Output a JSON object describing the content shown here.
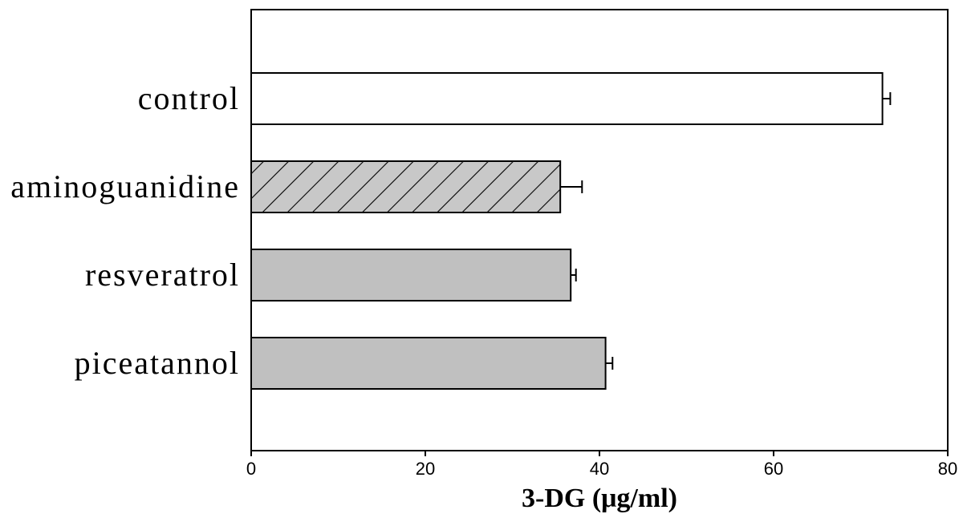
{
  "chart_data": {
    "type": "bar",
    "orientation": "horizontal",
    "categories": [
      "control",
      "aminoguanidine",
      "resveratrol",
      "piceatannol"
    ],
    "values": [
      72.5,
      35.5,
      36.7,
      40.7
    ],
    "errors": [
      0.9,
      2.5,
      0.6,
      0.8
    ],
    "fills": [
      "#ffffff",
      "hatch",
      "#c0c0c0",
      "#c0c0c0"
    ],
    "title": "",
    "xlabel": "3-DG (μg/ml)",
    "ylabel": "",
    "xlim": [
      0,
      80
    ],
    "xticks": [
      0,
      20,
      40,
      60,
      80
    ],
    "grid": false,
    "legend": "none"
  }
}
